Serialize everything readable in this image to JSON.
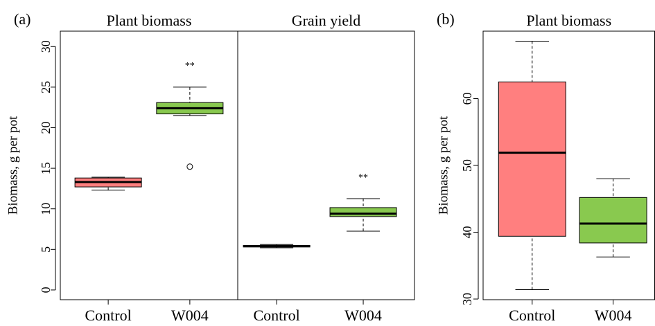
{
  "chart_data": [
    {
      "type": "box",
      "panel": "(a)",
      "title": "Plant biomass",
      "ylabel": "Biomass, g per pot",
      "categories": [
        "Control",
        "W004"
      ],
      "colors": [
        "#ff7f7f",
        "#89c94f"
      ],
      "boxes": [
        {
          "whislo": 12.3,
          "q1": 12.7,
          "med": 13.3,
          "q3": 13.8,
          "whishi": 13.9,
          "fliers": []
        },
        {
          "whislo": 21.5,
          "q1": 21.7,
          "med": 22.4,
          "q3": 23.1,
          "whishi": 25.0,
          "fliers": [
            15.2
          ]
        }
      ],
      "annotations": [
        null,
        "**"
      ],
      "ylim": [
        -1.2,
        31.9
      ],
      "yticks": [
        0,
        5,
        10,
        15,
        20,
        25,
        30
      ]
    },
    {
      "type": "box",
      "title": "Grain yield",
      "categories": [
        "Control",
        "W004"
      ],
      "colors": [
        "#ff7f7f",
        "#89c94f"
      ],
      "boxes": [
        {
          "whislo": 5.2,
          "q1": 5.3,
          "med": 5.4,
          "q3": 5.5,
          "whishi": 5.6,
          "fliers": []
        },
        {
          "whislo": 7.25,
          "q1": 9.05,
          "med": 9.4,
          "q3": 10.15,
          "whishi": 11.25,
          "fliers": []
        }
      ],
      "annotations": [
        null,
        "**"
      ],
      "ylim": [
        -1.2,
        31.9
      ]
    },
    {
      "type": "box",
      "panel": "(b)",
      "title": "Plant biomass",
      "ylabel": "Biomass, g per pot",
      "categories": [
        "Control",
        "W004"
      ],
      "colors": [
        "#ff7f7f",
        "#89c94f"
      ],
      "boxes": [
        {
          "whislo": 31.4,
          "q1": 39.4,
          "med": 51.9,
          "q3": 62.5,
          "whishi": 68.6,
          "fliers": []
        },
        {
          "whislo": 36.3,
          "q1": 38.4,
          "med": 41.3,
          "q3": 45.2,
          "whishi": 48.0,
          "fliers": []
        }
      ],
      "annotations": [
        null,
        null
      ],
      "ylim": [
        29.9,
        70.1
      ],
      "yticks": [
        30,
        40,
        50,
        60
      ]
    }
  ]
}
